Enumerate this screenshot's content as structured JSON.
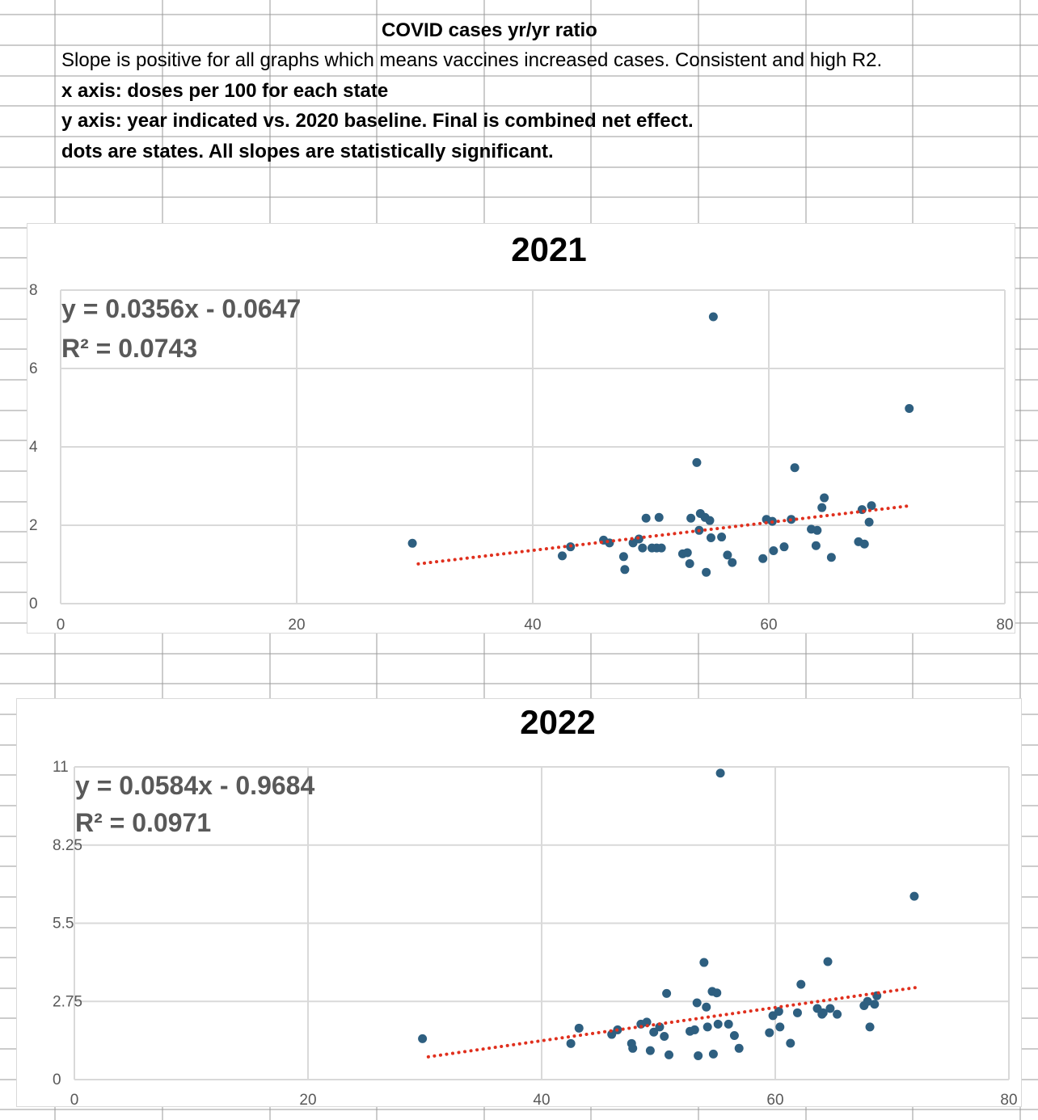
{
  "header": {
    "title": "COVID cases yr/yr ratio",
    "notes": [
      "Slope is positive for all graphs which means vaccines increased cases. Consistent and high R2.",
      "x axis: doses per 100 for each state",
      "y axis: year indicated vs. 2020 baseline. Final is combined net effect.",
      "dots are states. All slopes are statistically significant."
    ]
  },
  "colors": {
    "points": "#2e5f80",
    "trendline": "#e0301e",
    "gridlines": "#d9d9d9",
    "sheet_grid": "#9a9a9a",
    "equation_text": "#595959",
    "tick_text": "#595959"
  },
  "chart_data": [
    {
      "type": "scatter",
      "title": "2021",
      "equation": "y = 0.0356x - 0.0647",
      "r2": "R² = 0.0743",
      "xlim": [
        0,
        80
      ],
      "ylim": [
        0,
        8
      ],
      "x_ticks": [
        "0",
        "20",
        "40",
        "60",
        "80"
      ],
      "y_ticks": [
        "0",
        "2",
        "4",
        "6",
        "8"
      ],
      "x_tick_values": [
        0,
        20,
        40,
        60,
        80
      ],
      "y_tick_values": [
        0,
        2,
        4,
        6,
        8
      ],
      "grid": true,
      "trendline": {
        "type": "linear",
        "slope": 0.0356,
        "intercept": -0.0647,
        "x_range": [
          30.3,
          72
        ]
      },
      "points": [
        [
          29.8,
          1.54
        ],
        [
          42.5,
          1.22
        ],
        [
          43.2,
          1.45
        ],
        [
          46.0,
          1.62
        ],
        [
          46.5,
          1.55
        ],
        [
          47.7,
          1.2
        ],
        [
          47.8,
          0.87
        ],
        [
          48.5,
          1.55
        ],
        [
          49.0,
          1.65
        ],
        [
          49.3,
          1.42
        ],
        [
          49.6,
          2.18
        ],
        [
          50.1,
          1.42
        ],
        [
          50.5,
          1.42
        ],
        [
          50.7,
          2.2
        ],
        [
          50.9,
          1.42
        ],
        [
          52.7,
          1.27
        ],
        [
          53.1,
          1.3
        ],
        [
          53.3,
          1.02
        ],
        [
          53.4,
          2.18
        ],
        [
          53.9,
          3.6
        ],
        [
          54.1,
          1.87
        ],
        [
          54.2,
          2.3
        ],
        [
          54.6,
          2.2
        ],
        [
          54.7,
          0.8
        ],
        [
          55.0,
          2.12
        ],
        [
          55.1,
          1.68
        ],
        [
          55.3,
          7.32
        ],
        [
          56.0,
          1.7
        ],
        [
          56.5,
          1.24
        ],
        [
          56.9,
          1.05
        ],
        [
          59.5,
          1.15
        ],
        [
          59.8,
          2.15
        ],
        [
          60.3,
          2.1
        ],
        [
          60.4,
          1.35
        ],
        [
          61.3,
          1.45
        ],
        [
          61.9,
          2.15
        ],
        [
          62.2,
          3.47
        ],
        [
          63.6,
          1.9
        ],
        [
          64.0,
          1.48
        ],
        [
          64.1,
          1.87
        ],
        [
          64.5,
          2.45
        ],
        [
          64.7,
          2.7
        ],
        [
          65.3,
          1.18
        ],
        [
          67.6,
          1.58
        ],
        [
          67.9,
          2.4
        ],
        [
          68.1,
          1.52
        ],
        [
          68.5,
          2.08
        ],
        [
          68.7,
          2.5
        ],
        [
          71.9,
          4.98
        ]
      ]
    },
    {
      "type": "scatter",
      "title": "2022",
      "equation": "y = 0.0584x - 0.9684",
      "r2": "R² = 0.0971",
      "xlim": [
        0,
        80
      ],
      "ylim": [
        0,
        11
      ],
      "x_ticks": [
        "0",
        "20",
        "40",
        "60",
        "80"
      ],
      "y_ticks": [
        "0",
        "2.75",
        "5.5",
        "8.25",
        "11"
      ],
      "x_tick_values": [
        0,
        20,
        40,
        60,
        80
      ],
      "y_tick_values": [
        0,
        2.75,
        5.5,
        8.25,
        11
      ],
      "grid": true,
      "trendline": {
        "type": "linear",
        "slope": 0.0584,
        "intercept": -0.9684,
        "x_range": [
          30.3,
          72
        ]
      },
      "points": [
        [
          29.8,
          1.44
        ],
        [
          42.5,
          1.27
        ],
        [
          43.2,
          1.81
        ],
        [
          46.0,
          1.59
        ],
        [
          46.5,
          1.75
        ],
        [
          47.7,
          1.27
        ],
        [
          47.8,
          1.1
        ],
        [
          48.5,
          1.95
        ],
        [
          49.0,
          2.02
        ],
        [
          49.3,
          1.02
        ],
        [
          49.6,
          1.67
        ],
        [
          50.1,
          1.85
        ],
        [
          50.5,
          1.52
        ],
        [
          50.7,
          3.03
        ],
        [
          50.9,
          0.87
        ],
        [
          52.7,
          1.7
        ],
        [
          53.1,
          1.75
        ],
        [
          53.3,
          2.7
        ],
        [
          53.4,
          0.84
        ],
        [
          53.9,
          4.12
        ],
        [
          54.1,
          2.55
        ],
        [
          54.2,
          1.85
        ],
        [
          54.6,
          3.1
        ],
        [
          54.7,
          0.9
        ],
        [
          55.0,
          3.05
        ],
        [
          55.1,
          1.95
        ],
        [
          55.3,
          10.78
        ],
        [
          56.0,
          1.95
        ],
        [
          56.5,
          1.55
        ],
        [
          56.9,
          1.1
        ],
        [
          59.5,
          1.65
        ],
        [
          59.8,
          2.25
        ],
        [
          60.3,
          2.4
        ],
        [
          60.4,
          1.85
        ],
        [
          61.3,
          1.28
        ],
        [
          61.9,
          2.35
        ],
        [
          62.2,
          3.35
        ],
        [
          63.6,
          2.5
        ],
        [
          64.0,
          2.3
        ],
        [
          64.1,
          2.35
        ],
        [
          64.5,
          4.15
        ],
        [
          64.7,
          2.5
        ],
        [
          65.3,
          2.3
        ],
        [
          67.6,
          2.6
        ],
        [
          67.9,
          2.75
        ],
        [
          68.1,
          1.85
        ],
        [
          68.5,
          2.65
        ],
        [
          68.7,
          2.95
        ],
        [
          71.9,
          6.45
        ]
      ]
    }
  ]
}
